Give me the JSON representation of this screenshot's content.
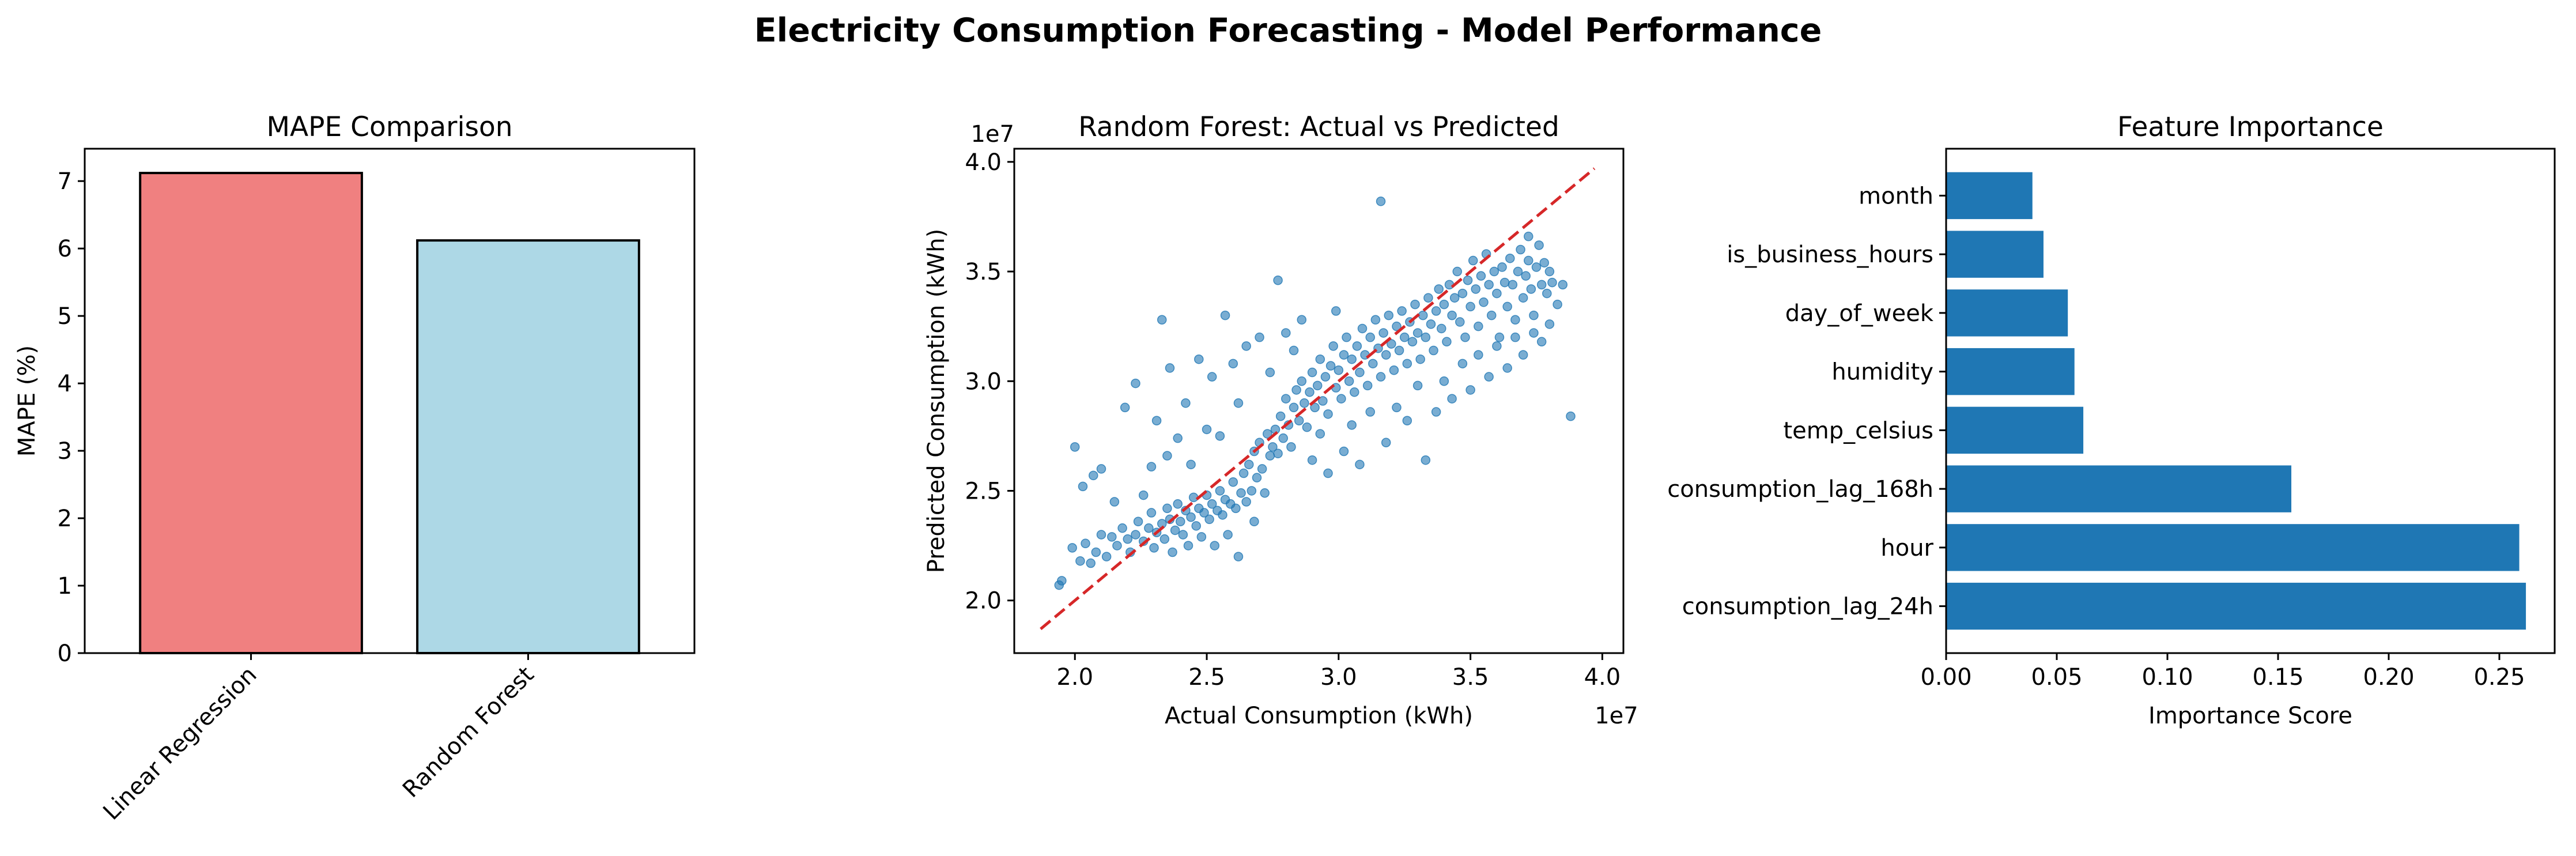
{
  "figure": {
    "suptitle": "Electricity Consumption Forecasting - Model Performance"
  },
  "chart_data": [
    {
      "type": "bar",
      "title": "MAPE Comparison",
      "xlabel": "",
      "ylabel": "MAPE (%)",
      "categories": [
        "Linear Regression",
        "Random Forest"
      ],
      "values": [
        7.12,
        6.12
      ],
      "colors": [
        "#f08080",
        "#add8e6"
      ],
      "edge_color": "#000000",
      "ylim": [
        0,
        7.48
      ],
      "yticks": [
        0,
        1,
        2,
        3,
        4,
        5,
        6,
        7
      ],
      "xtick_rotation": 45,
      "grid": false
    },
    {
      "type": "scatter",
      "title": "Random Forest: Actual vs Predicted",
      "xlabel": "Actual Consumption (kWh)",
      "ylabel": "Predicted Consumption (kWh)",
      "x_offset_label": "1e7",
      "y_offset_label": "1e7",
      "xlim": [
        1.77,
        4.08
      ],
      "ylim": [
        1.76,
        4.06
      ],
      "xticks": [
        2.0,
        2.5,
        3.0,
        3.5,
        4.0
      ],
      "yticks": [
        2.0,
        2.5,
        3.0,
        3.5,
        4.0
      ],
      "point_color": "#1f77b4",
      "reference_line": {
        "x": [
          1.87,
          3.97
        ],
        "y": [
          1.87,
          3.97
        ],
        "color": "#d62728",
        "style": "dashed"
      },
      "points": [
        [
          1.95,
          2.09
        ],
        [
          1.94,
          2.07
        ],
        [
          1.99,
          2.24
        ],
        [
          2.02,
          2.18
        ],
        [
          2.06,
          2.17
        ],
        [
          2.04,
          2.26
        ],
        [
          2.08,
          2.22
        ],
        [
          2.1,
          2.3
        ],
        [
          2.12,
          2.2
        ],
        [
          2.14,
          2.29
        ],
        [
          2.16,
          2.25
        ],
        [
          2.18,
          2.33
        ],
        [
          2.2,
          2.28
        ],
        [
          2.21,
          2.22
        ],
        [
          2.23,
          2.3
        ],
        [
          2.24,
          2.36
        ],
        [
          2.26,
          2.27
        ],
        [
          2.28,
          2.33
        ],
        [
          2.29,
          2.4
        ],
        [
          2.3,
          2.24
        ],
        [
          2.31,
          2.31
        ],
        [
          2.33,
          2.35
        ],
        [
          2.34,
          2.28
        ],
        [
          2.35,
          2.42
        ],
        [
          2.36,
          2.37
        ],
        [
          2.37,
          2.22
        ],
        [
          2.38,
          2.32
        ],
        [
          2.39,
          2.44
        ],
        [
          2.4,
          2.36
        ],
        [
          2.41,
          2.3
        ],
        [
          2.42,
          2.41
        ],
        [
          2.43,
          2.25
        ],
        [
          2.44,
          2.38
        ],
        [
          2.45,
          2.47
        ],
        [
          2.46,
          2.34
        ],
        [
          2.47,
          2.42
        ],
        [
          2.48,
          2.29
        ],
        [
          2.49,
          2.4
        ],
        [
          2.5,
          2.48
        ],
        [
          2.51,
          2.37
        ],
        [
          2.52,
          2.44
        ],
        [
          2.53,
          2.25
        ],
        [
          2.54,
          2.41
        ],
        [
          2.55,
          2.5
        ],
        [
          2.56,
          2.39
        ],
        [
          2.57,
          2.46
        ],
        [
          2.58,
          2.3
        ],
        [
          2.59,
          2.44
        ],
        [
          2.6,
          2.54
        ],
        [
          2.61,
          2.42
        ],
        [
          2.62,
          2.2
        ],
        [
          2.63,
          2.49
        ],
        [
          2.64,
          2.58
        ],
        [
          2.65,
          2.45
        ],
        [
          2.66,
          2.62
        ],
        [
          2.67,
          2.5
        ],
        [
          2.68,
          2.68
        ],
        [
          2.69,
          2.56
        ],
        [
          2.7,
          2.72
        ],
        [
          2.71,
          2.6
        ],
        [
          2.72,
          2.49
        ],
        [
          2.73,
          2.76
        ],
        [
          2.74,
          2.66
        ],
        [
          2.75,
          2.7
        ],
        [
          2.76,
          2.78
        ],
        [
          2.77,
          2.67
        ],
        [
          2.78,
          2.84
        ],
        [
          2.79,
          2.74
        ],
        [
          2.8,
          2.92
        ],
        [
          2.81,
          2.8
        ],
        [
          2.82,
          2.7
        ],
        [
          2.83,
          2.88
        ],
        [
          2.84,
          2.96
        ],
        [
          2.85,
          2.82
        ],
        [
          2.86,
          3.0
        ],
        [
          2.87,
          2.9
        ],
        [
          2.88,
          2.79
        ],
        [
          2.89,
          2.95
        ],
        [
          2.9,
          3.04
        ],
        [
          2.91,
          2.88
        ],
        [
          2.92,
          2.98
        ],
        [
          2.93,
          3.1
        ],
        [
          2.94,
          2.91
        ],
        [
          2.95,
          3.02
        ],
        [
          2.96,
          2.85
        ],
        [
          2.97,
          3.07
        ],
        [
          2.98,
          3.16
        ],
        [
          2.99,
          2.97
        ],
        [
          3.0,
          3.05
        ],
        [
          3.01,
          2.92
        ],
        [
          3.02,
          3.12
        ],
        [
          3.03,
          3.2
        ],
        [
          3.04,
          3.0
        ],
        [
          3.05,
          3.1
        ],
        [
          3.06,
          2.95
        ],
        [
          3.07,
          3.16
        ],
        [
          3.08,
          3.04
        ],
        [
          3.09,
          3.24
        ],
        [
          3.1,
          3.12
        ],
        [
          3.11,
          2.98
        ],
        [
          3.12,
          3.2
        ],
        [
          3.13,
          3.08
        ],
        [
          3.14,
          3.28
        ],
        [
          3.15,
          3.15
        ],
        [
          3.16,
          3.02
        ],
        [
          3.17,
          3.22
        ],
        [
          3.18,
          3.12
        ],
        [
          3.19,
          3.3
        ],
        [
          3.2,
          3.17
        ],
        [
          3.21,
          3.05
        ],
        [
          3.22,
          3.25
        ],
        [
          3.23,
          3.14
        ],
        [
          3.24,
          3.32
        ],
        [
          3.25,
          3.2
        ],
        [
          3.26,
          3.08
        ],
        [
          3.27,
          3.27
        ],
        [
          3.28,
          3.18
        ],
        [
          3.29,
          3.35
        ],
        [
          3.3,
          3.22
        ],
        [
          3.31,
          3.1
        ],
        [
          3.32,
          3.3
        ],
        [
          3.33,
          3.2
        ],
        [
          3.34,
          3.38
        ],
        [
          3.35,
          3.26
        ],
        [
          3.36,
          3.14
        ],
        [
          3.37,
          3.32
        ],
        [
          3.38,
          3.42
        ],
        [
          3.39,
          3.24
        ],
        [
          3.4,
          3.35
        ],
        [
          3.41,
          3.18
        ],
        [
          3.42,
          3.44
        ],
        [
          3.43,
          3.3
        ],
        [
          3.44,
          3.38
        ],
        [
          3.45,
          3.5
        ],
        [
          3.46,
          3.27
        ],
        [
          3.47,
          3.4
        ],
        [
          3.48,
          3.2
        ],
        [
          3.49,
          3.46
        ],
        [
          3.5,
          3.34
        ],
        [
          3.51,
          3.55
        ],
        [
          3.52,
          3.42
        ],
        [
          3.53,
          3.25
        ],
        [
          3.54,
          3.48
        ],
        [
          3.55,
          3.36
        ],
        [
          3.56,
          3.58
        ],
        [
          3.57,
          3.44
        ],
        [
          3.58,
          3.3
        ],
        [
          3.59,
          3.5
        ],
        [
          3.6,
          3.4
        ],
        [
          3.61,
          3.2
        ],
        [
          3.62,
          3.52
        ],
        [
          3.63,
          3.45
        ],
        [
          3.64,
          3.34
        ],
        [
          3.65,
          3.56
        ],
        [
          3.66,
          3.44
        ],
        [
          3.67,
          3.28
        ],
        [
          3.68,
          3.5
        ],
        [
          3.69,
          3.6
        ],
        [
          3.7,
          3.38
        ],
        [
          3.71,
          3.48
        ],
        [
          3.72,
          3.55
        ],
        [
          3.73,
          3.42
        ],
        [
          3.74,
          3.3
        ],
        [
          3.75,
          3.52
        ],
        [
          3.76,
          3.62
        ],
        [
          3.77,
          3.44
        ],
        [
          3.78,
          3.54
        ],
        [
          3.79,
          3.4
        ],
        [
          3.8,
          3.5
        ],
        [
          3.81,
          3.45
        ],
        [
          3.83,
          3.35
        ],
        [
          3.85,
          3.44
        ],
        [
          3.88,
          2.84
        ],
        [
          2.0,
          2.7
        ],
        [
          2.03,
          2.52
        ],
        [
          2.07,
          2.57
        ],
        [
          2.1,
          2.6
        ],
        [
          2.15,
          2.45
        ],
        [
          2.19,
          2.88
        ],
        [
          2.23,
          2.99
        ],
        [
          2.26,
          2.48
        ],
        [
          2.29,
          2.61
        ],
        [
          2.31,
          2.82
        ],
        [
          2.33,
          3.28
        ],
        [
          2.35,
          2.66
        ],
        [
          2.36,
          3.06
        ],
        [
          2.39,
          2.74
        ],
        [
          2.42,
          2.9
        ],
        [
          2.44,
          2.62
        ],
        [
          2.47,
          3.1
        ],
        [
          2.5,
          2.78
        ],
        [
          2.52,
          3.02
        ],
        [
          2.55,
          2.75
        ],
        [
          2.57,
          3.3
        ],
        [
          2.6,
          3.08
        ],
        [
          2.62,
          2.9
        ],
        [
          2.65,
          3.16
        ],
        [
          2.68,
          2.36
        ],
        [
          2.7,
          3.2
        ],
        [
          2.74,
          3.04
        ],
        [
          2.77,
          3.46
        ],
        [
          2.8,
          3.22
        ],
        [
          2.83,
          3.14
        ],
        [
          2.86,
          3.28
        ],
        [
          2.9,
          2.64
        ],
        [
          2.93,
          2.76
        ],
        [
          2.96,
          2.58
        ],
        [
          2.99,
          3.32
        ],
        [
          3.02,
          2.68
        ],
        [
          3.05,
          2.8
        ],
        [
          3.08,
          2.62
        ],
        [
          3.12,
          2.86
        ],
        [
          3.16,
          3.82
        ],
        [
          3.18,
          2.72
        ],
        [
          3.22,
          2.88
        ],
        [
          3.26,
          2.82
        ],
        [
          3.3,
          2.98
        ],
        [
          3.33,
          2.64
        ],
        [
          3.37,
          2.86
        ],
        [
          3.4,
          3.0
        ],
        [
          3.43,
          2.92
        ],
        [
          3.47,
          3.08
        ],
        [
          3.5,
          2.96
        ],
        [
          3.53,
          3.12
        ],
        [
          3.57,
          3.02
        ],
        [
          3.6,
          3.16
        ],
        [
          3.64,
          3.06
        ],
        [
          3.67,
          3.2
        ],
        [
          3.7,
          3.12
        ],
        [
          3.72,
          3.66
        ],
        [
          3.74,
          3.22
        ],
        [
          3.77,
          3.18
        ],
        [
          3.8,
          3.26
        ]
      ]
    },
    {
      "type": "bar",
      "orientation": "horizontal",
      "title": "Feature Importance",
      "xlabel": "Importance Score",
      "ylabel": "",
      "categories": [
        "consumption_lag_24h",
        "hour",
        "consumption_lag_168h",
        "temp_celsius",
        "humidity",
        "day_of_week",
        "is_business_hours",
        "month"
      ],
      "values": [
        0.262,
        0.259,
        0.156,
        0.062,
        0.058,
        0.055,
        0.044,
        0.039
      ],
      "color": "#1f77b4",
      "xlim": [
        0,
        0.275
      ],
      "xticks": [
        "0.00",
        "0.05",
        "0.10",
        "0.15",
        "0.20",
        "0.25"
      ],
      "grid": false
    }
  ]
}
